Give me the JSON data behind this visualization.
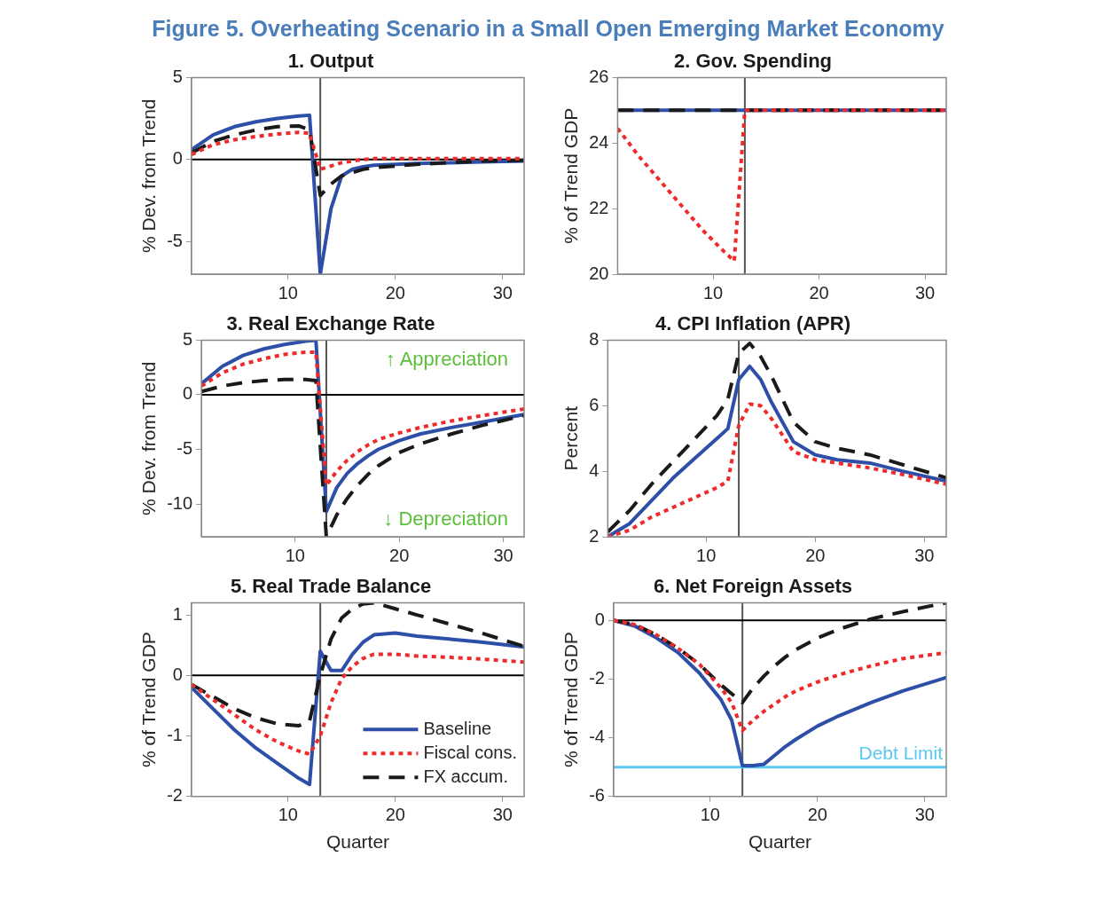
{
  "chart_data": [
    {
      "type": "other",
      "title": "Figure 5. Overheating Scenario in a Small Open Emerging Market Economy"
    },
    {
      "type": "line",
      "title": "1. Output",
      "ylabel": "% Dev. from Trend",
      "x": [
        1,
        3,
        5,
        7,
        9,
        11,
        12,
        13,
        14,
        15,
        16,
        17,
        18,
        20,
        22,
        25,
        28,
        32
      ],
      "xlim": [
        1,
        32
      ],
      "xticks": [
        10,
        20,
        30
      ],
      "ylim": [
        -7,
        5
      ],
      "yticks": [
        -5,
        0,
        5
      ],
      "series": [
        {
          "color": "#2e4fa8",
          "line_style": "solid",
          "values": [
            0.6,
            1.5,
            2.0,
            2.3,
            2.5,
            2.65,
            2.7,
            -7,
            -3,
            -1.0,
            -0.6,
            -0.45,
            -0.35,
            -0.3,
            -0.25,
            -0.2,
            -0.15,
            -0.1
          ]
        },
        {
          "color": "#ee2a2a",
          "line_style": "dotted",
          "values": [
            0.3,
            0.9,
            1.2,
            1.4,
            1.55,
            1.65,
            1.6,
            -0.6,
            -0.4,
            -0.2,
            -0.1,
            0,
            0.05,
            0.05,
            0.05,
            0.05,
            0.05,
            0.05
          ]
        },
        {
          "color": "#1a1a1a",
          "line_style": "dashed",
          "values": [
            0.4,
            1.1,
            1.5,
            1.8,
            2.0,
            2.05,
            1.8,
            -2.2,
            -1.5,
            -1.0,
            -0.8,
            -0.6,
            -0.5,
            -0.4,
            -0.3,
            -0.2,
            -0.1,
            -0.05
          ]
        }
      ],
      "ref_lines": [
        {
          "axis": "x",
          "value": 13,
          "color": "#555555"
        },
        {
          "axis": "y",
          "value": 0,
          "color": "#000000"
        }
      ]
    },
    {
      "type": "line",
      "title": "2. Gov. Spending",
      "ylabel": "% of Trend GDP",
      "x": [
        1,
        3,
        5,
        7,
        9,
        11,
        12,
        13,
        14,
        15,
        16,
        17,
        18,
        20,
        22,
        25,
        28,
        32
      ],
      "xlim": [
        1,
        32
      ],
      "xticks": [
        10,
        20,
        30
      ],
      "ylim": [
        20,
        26
      ],
      "yticks": [
        20,
        22,
        24,
        26
      ],
      "series": [
        {
          "color": "#2e4fa8",
          "line_style": "solid",
          "values": [
            25,
            25,
            25,
            25,
            25,
            25,
            25,
            25,
            25,
            25,
            25,
            25,
            25,
            25,
            25,
            25,
            25,
            25
          ]
        },
        {
          "color": "#ee2a2a",
          "line_style": "dotted",
          "values": [
            24.45,
            23.6,
            22.85,
            22.1,
            21.35,
            20.7,
            20.4,
            25,
            25,
            25,
            25,
            25,
            25,
            25,
            25,
            25,
            25,
            25
          ]
        },
        {
          "color": "#1a1a1a",
          "line_style": "dashed",
          "values": [
            25,
            25,
            25,
            25,
            25,
            25,
            25,
            25,
            25,
            25,
            25,
            25,
            25,
            25,
            25,
            25,
            25,
            25
          ]
        }
      ],
      "ref_lines": [
        {
          "axis": "x",
          "value": 13,
          "color": "#555555"
        }
      ]
    },
    {
      "type": "line",
      "title": "3. Real Exchange Rate",
      "ylabel": "% Dev. from Trend",
      "x": [
        1,
        3,
        5,
        7,
        9,
        11,
        12,
        13,
        14,
        15,
        16,
        17,
        18,
        20,
        22,
        25,
        28,
        32
      ],
      "xlim": [
        1,
        32
      ],
      "xticks": [
        10,
        20,
        30
      ],
      "ylim": [
        -13,
        5
      ],
      "yticks": [
        -10,
        -5,
        0,
        5
      ],
      "series": [
        {
          "color": "#2e4fa8",
          "line_style": "solid",
          "values": [
            1.0,
            2.6,
            3.6,
            4.2,
            4.6,
            4.9,
            5.0,
            -10.7,
            -8.5,
            -7.2,
            -6.3,
            -5.6,
            -5.0,
            -4.2,
            -3.6,
            -3.0,
            -2.5,
            -1.8
          ]
        },
        {
          "color": "#ee2a2a",
          "line_style": "dotted",
          "values": [
            0.8,
            2.0,
            2.8,
            3.3,
            3.7,
            3.9,
            3.9,
            -8.3,
            -7,
            -6.0,
            -5.2,
            -4.6,
            -4.1,
            -3.5,
            -3.0,
            -2.4,
            -1.9,
            -1.3
          ]
        },
        {
          "color": "#1a1a1a",
          "line_style": "dashed",
          "values": [
            0.3,
            0.8,
            1.1,
            1.3,
            1.4,
            1.4,
            1.3,
            -13,
            -11,
            -9.5,
            -8.3,
            -7.3,
            -6.5,
            -5.3,
            -4.5,
            -3.6,
            -2.8,
            -1.9
          ]
        }
      ],
      "ref_lines": [
        {
          "axis": "x",
          "value": 13,
          "color": "#555555"
        },
        {
          "axis": "y",
          "value": 0,
          "color": "#000000"
        }
      ],
      "annotations": [
        "↑ Appreciation",
        "↓ Depreciation"
      ]
    },
    {
      "type": "line",
      "title": "4. CPI Inflation (APR)",
      "ylabel": "Percent",
      "x": [
        1,
        3,
        5,
        7,
        9,
        11,
        12,
        13,
        14,
        15,
        16,
        17,
        18,
        20,
        22,
        25,
        28,
        32
      ],
      "xlim": [
        1,
        32
      ],
      "xticks": [
        10,
        20,
        30
      ],
      "ylim": [
        2,
        8
      ],
      "yticks": [
        2,
        4,
        6,
        8
      ],
      "series": [
        {
          "color": "#2e4fa8",
          "line_style": "solid",
          "values": [
            2.0,
            2.4,
            3.1,
            3.8,
            4.4,
            5.0,
            5.3,
            6.8,
            7.2,
            6.8,
            6.1,
            5.5,
            4.9,
            4.5,
            4.35,
            4.25,
            4.0,
            3.7
          ]
        },
        {
          "color": "#ee2a2a",
          "line_style": "dotted",
          "values": [
            2.0,
            2.2,
            2.6,
            2.9,
            3.2,
            3.5,
            3.7,
            5.4,
            6.05,
            6.0,
            5.6,
            5.1,
            4.6,
            4.35,
            4.25,
            4.1,
            3.9,
            3.6
          ]
        },
        {
          "color": "#1a1a1a",
          "line_style": "dashed",
          "values": [
            2.15,
            2.8,
            3.6,
            4.3,
            5.0,
            5.7,
            6.2,
            7.6,
            7.9,
            7.5,
            6.9,
            6.2,
            5.5,
            4.9,
            4.7,
            4.5,
            4.2,
            3.8
          ]
        }
      ],
      "ref_lines": [
        {
          "axis": "x",
          "value": 13,
          "color": "#555555"
        }
      ]
    },
    {
      "type": "line",
      "title": "5. Real Trade Balance",
      "xlabel": "Quarter",
      "ylabel": "% of Trend GDP",
      "x": [
        1,
        3,
        5,
        7,
        9,
        11,
        12,
        13,
        14,
        15,
        16,
        17,
        18,
        20,
        22,
        25,
        28,
        32
      ],
      "xlim": [
        1,
        32
      ],
      "xticks": [
        10,
        20,
        30
      ],
      "ylim": [
        -2,
        1.2
      ],
      "yticks": [
        -2,
        -1,
        0,
        1
      ],
      "legend": "bottom right",
      "series": [
        {
          "name": "Baseline",
          "color": "#2e4fa8",
          "line_style": "solid",
          "values": [
            -0.2,
            -0.55,
            -0.9,
            -1.2,
            -1.45,
            -1.7,
            -1.8,
            0.4,
            0.08,
            0.08,
            0.35,
            0.55,
            0.67,
            0.7,
            0.65,
            0.6,
            0.55,
            0.47
          ]
        },
        {
          "name": "Fiscal cons.",
          "color": "#ee2a2a",
          "line_style": "dotted",
          "values": [
            -0.15,
            -0.4,
            -0.65,
            -0.9,
            -1.1,
            -1.25,
            -1.3,
            -1.0,
            -0.45,
            -0.05,
            0.15,
            0.28,
            0.35,
            0.35,
            0.32,
            0.3,
            0.27,
            0.22
          ]
        },
        {
          "name": "FX accum.",
          "color": "#1a1a1a",
          "line_style": "dashed",
          "values": [
            -0.15,
            -0.35,
            -0.55,
            -0.7,
            -0.8,
            -0.83,
            -0.75,
            0.0,
            0.6,
            0.95,
            1.1,
            1.18,
            1.2,
            1.1,
            1.0,
            0.85,
            0.7,
            0.48
          ]
        }
      ],
      "ref_lines": [
        {
          "axis": "x",
          "value": 13,
          "color": "#555555"
        },
        {
          "axis": "y",
          "value": 0,
          "color": "#000000"
        }
      ]
    },
    {
      "type": "line",
      "title": "6. Net Foreign Assets",
      "xlabel": "Quarter",
      "ylabel": "% of Trend GDP",
      "x": [
        1,
        3,
        5,
        7,
        9,
        11,
        12,
        13,
        14,
        15,
        16,
        17,
        18,
        20,
        22,
        25,
        28,
        32
      ],
      "xlim": [
        1,
        32
      ],
      "xticks": [
        10,
        20,
        30
      ],
      "ylim": [
        -6,
        0.6
      ],
      "yticks": [
        -6,
        -4,
        -2,
        0
      ],
      "series": [
        {
          "color": "#2e4fa8",
          "line_style": "solid",
          "values": [
            0,
            -0.2,
            -0.6,
            -1.1,
            -1.8,
            -2.7,
            -3.4,
            -4.95,
            -4.95,
            -4.9,
            -4.6,
            -4.3,
            -4.05,
            -3.6,
            -3.25,
            -2.8,
            -2.4,
            -1.95
          ]
        },
        {
          "color": "#ee2a2a",
          "line_style": "dotted",
          "values": [
            0,
            -0.15,
            -0.5,
            -0.95,
            -1.5,
            -2.3,
            -2.8,
            -3.75,
            -3.4,
            -3.1,
            -2.85,
            -2.6,
            -2.4,
            -2.1,
            -1.85,
            -1.55,
            -1.3,
            -1.1
          ]
        },
        {
          "color": "#1a1a1a",
          "line_style": "dashed",
          "values": [
            0,
            -0.15,
            -0.5,
            -0.95,
            -1.5,
            -2.2,
            -2.5,
            -2.8,
            -2.3,
            -1.9,
            -1.55,
            -1.25,
            -1.0,
            -0.6,
            -0.3,
            0.05,
            0.3,
            0.6
          ]
        }
      ],
      "ref_lines": [
        {
          "axis": "x",
          "value": 13,
          "color": "#555555"
        },
        {
          "axis": "y",
          "value": 0,
          "color": "#000000"
        },
        {
          "axis": "y",
          "value": -5,
          "label": "Debt Limit",
          "color": "#5bc8f0"
        }
      ]
    }
  ]
}
